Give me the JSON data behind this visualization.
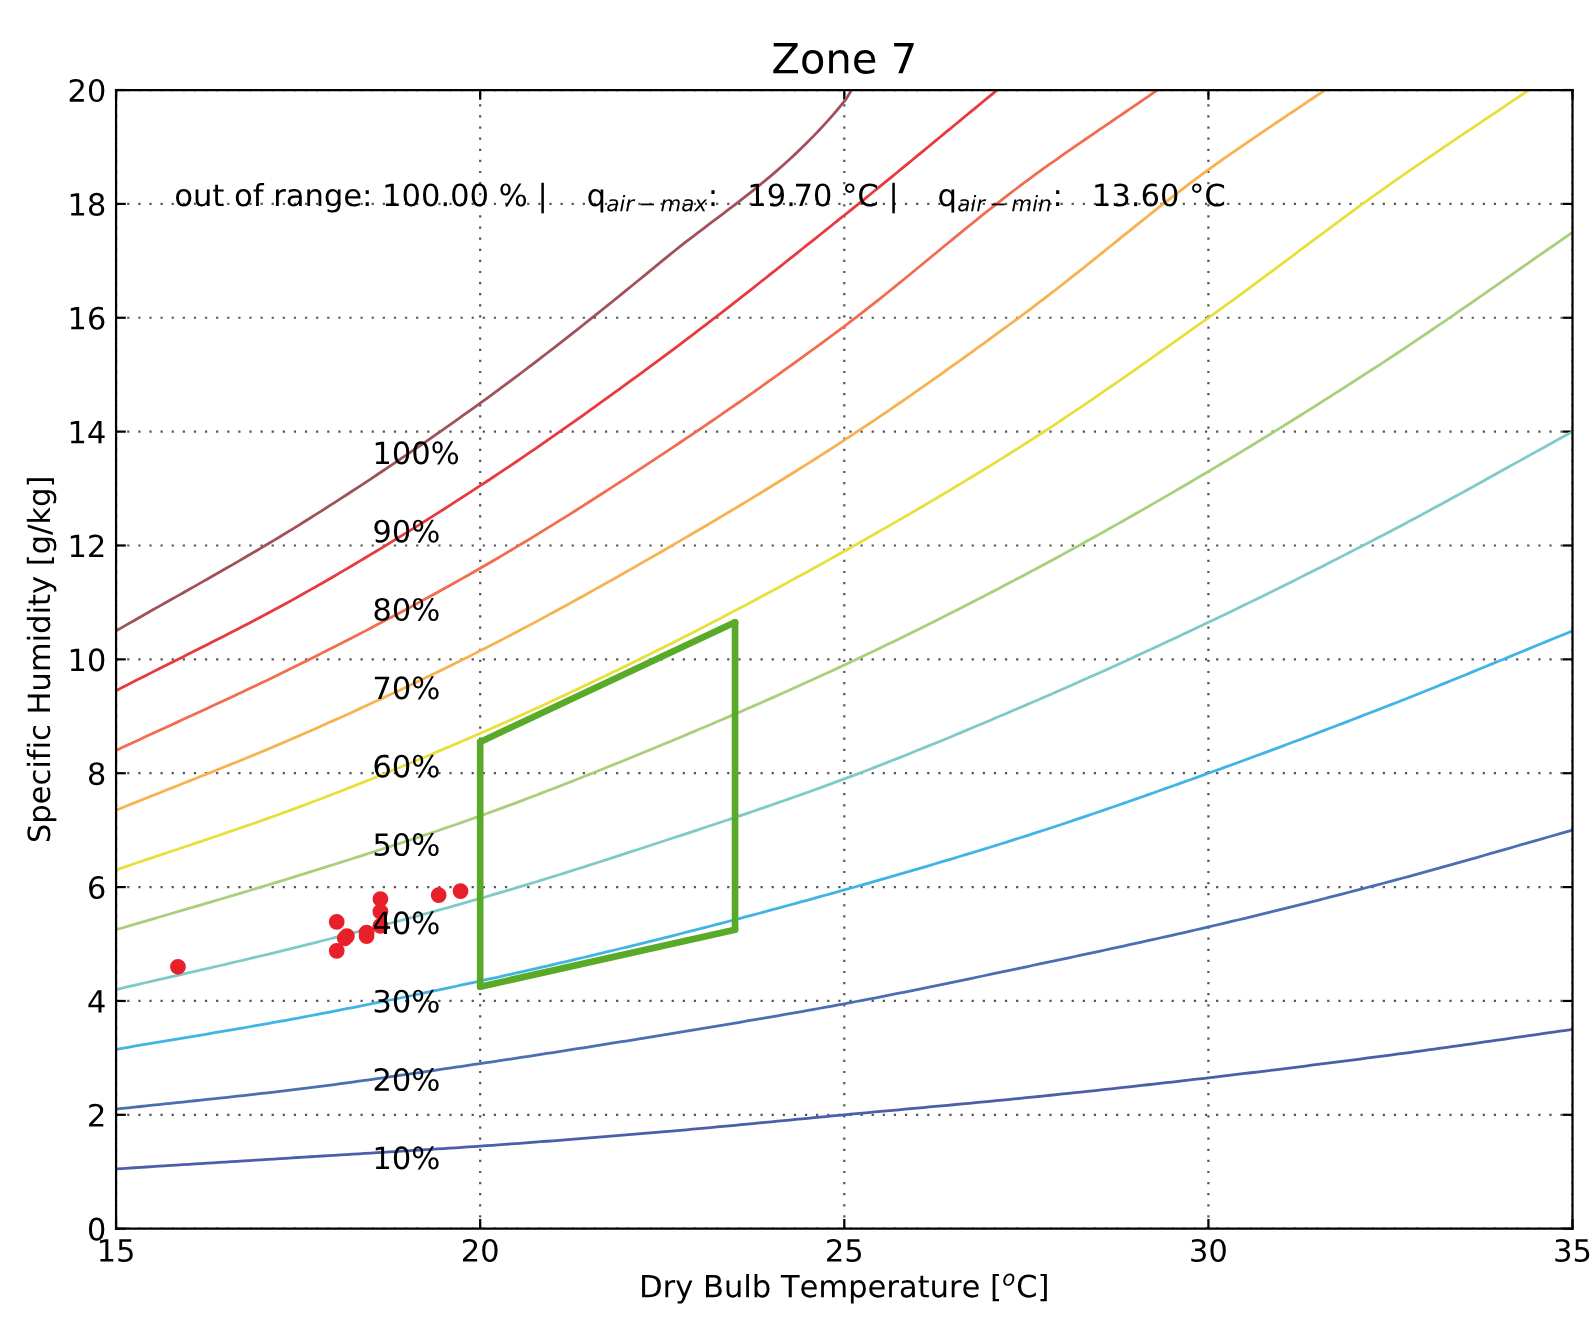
{
  "chart_data": {
    "type": "line",
    "title": "Zone 7",
    "xlabel": "Dry Bulb Temperature [$^{o}$C]",
    "ylabel": "Specific Humidity [g/kg]",
    "xlim": [
      15,
      35
    ],
    "xticks": [
      15,
      20,
      25,
      30,
      35
    ],
    "ylim": [
      0,
      20
    ],
    "yticks": [
      0,
      2,
      4,
      6,
      8,
      10,
      12,
      14,
      16,
      18,
      20
    ],
    "grid": true,
    "legend": false,
    "line_style": "solid",
    "series": [
      {
        "color": "#a0525a",
        "x": [
          15,
          17.5,
          20,
          22.5,
          25,
          25.1
        ],
        "values": [
          10.5,
          12.35,
          14.5,
          17.0,
          19.8,
          20
        ]
      },
      {
        "color": "#e8393f",
        "x": [
          15,
          17.5,
          20,
          22.5,
          25,
          27.1
        ],
        "values": [
          9.45,
          11.1,
          13.05,
          15.3,
          17.8,
          20
        ]
      },
      {
        "color": "#f26c4f",
        "x": [
          15,
          17.5,
          20,
          22.5,
          25,
          27.5,
          29.3
        ],
        "values": [
          8.4,
          9.9,
          11.6,
          13.6,
          15.85,
          18.4,
          20
        ]
      },
      {
        "color": "#f7b24f",
        "x": [
          15,
          17.5,
          20,
          22.5,
          25,
          27.5,
          30,
          31.6
        ],
        "values": [
          7.35,
          8.65,
          10.15,
          11.9,
          13.85,
          16.1,
          18.6,
          20
        ]
      },
      {
        "color": "#e8e03a",
        "x": [
          15,
          17.5,
          20,
          22.5,
          25,
          27.5,
          30,
          32.5,
          34.4
        ],
        "values": [
          6.3,
          7.4,
          8.7,
          10.2,
          11.9,
          13.8,
          16.0,
          18.35,
          20
        ]
      },
      {
        "color": "#a8cf7a",
        "x": [
          15,
          17.5,
          20,
          22.5,
          25,
          27.5,
          30,
          32.5,
          35
        ],
        "values": [
          5.25,
          6.2,
          7.25,
          8.5,
          9.9,
          11.5,
          13.3,
          15.3,
          17.5
        ]
      },
      {
        "color": "#7fcac8",
        "x": [
          15,
          17.5,
          20,
          22.5,
          25,
          27.5,
          30,
          32.5,
          35
        ],
        "values": [
          4.2,
          4.95,
          5.8,
          6.8,
          7.9,
          9.2,
          10.65,
          12.25,
          14.0
        ]
      },
      {
        "color": "#3fb4e5",
        "x": [
          15,
          17.5,
          20,
          22.5,
          25,
          27.5,
          30,
          32.5,
          35
        ],
        "values": [
          3.15,
          3.7,
          4.35,
          5.1,
          5.95,
          6.9,
          8.0,
          9.2,
          10.5
        ]
      },
      {
        "color": "#4a6fb0",
        "x": [
          15,
          17.5,
          20,
          22.5,
          25,
          27.5,
          30,
          32.5,
          35
        ],
        "values": [
          2.1,
          2.45,
          2.9,
          3.4,
          3.95,
          4.6,
          5.3,
          6.1,
          7.0
        ]
      },
      {
        "color": "#4a5fa8",
        "x": [
          15,
          17.5,
          20,
          22.5,
          25,
          27.5,
          30,
          32.5,
          35
        ],
        "values": [
          1.05,
          1.25,
          1.45,
          1.7,
          2.0,
          2.3,
          2.65,
          3.05,
          3.5
        ]
      },
      {
        "color": "#5aaa2a",
        "x": [
          20,
          23.5
        ],
        "values": [
          8.55,
          10.65
        ]
      },
      {
        "color": "#5aaa2a",
        "x": [
          20,
          23.5
        ],
        "values": [
          4.25,
          5.25
        ]
      },
      {
        "color": "#5aaa2a",
        "x": [
          20,
          20
        ],
        "values": [
          4.25,
          8.55
        ]
      },
      {
        "color": "#5aaa2a",
        "x": [
          23.5,
          23.5
        ],
        "values": [
          5.25,
          10.65
        ]
      },
      {
        "type": "scatter",
        "marker": "circle",
        "color": "#e8202a",
        "x": [
          15.85,
          18.03,
          18.03,
          18.17,
          18.14,
          18.44,
          18.44,
          18.63,
          18.63,
          18.63,
          19.43,
          19.73
        ],
        "values": [
          4.6,
          5.39,
          4.88,
          5.14,
          5.1,
          5.2,
          5.14,
          5.79,
          5.57,
          5.32,
          5.86,
          5.93
        ]
      }
    ],
    "annotations": [
      "out of range: 100.00 % |    q$_{air−max}$:   19.70 °C |    q$_{air−min}$:   13.60 °C",
      "100%",
      "90%",
      "80%",
      "70%",
      "60%",
      "50%",
      "40%",
      "30%",
      "20%",
      "10%"
    ]
  }
}
